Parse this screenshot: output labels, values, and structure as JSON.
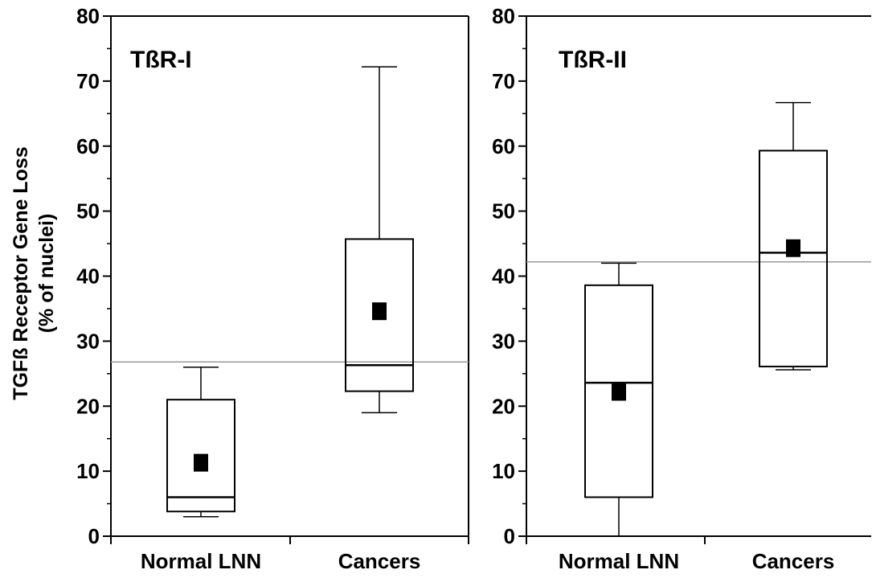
{
  "chart_data": {
    "type": "box",
    "ylabel_line1": "TGFß Receptor Gene Loss",
    "ylabel_line2": "(% of nuclei)",
    "ylim": [
      0,
      80
    ],
    "yticks": [
      "0",
      "10",
      "20",
      "30",
      "40",
      "50",
      "60",
      "70",
      "80"
    ],
    "panels": [
      {
        "title": "TßR-I",
        "categories": [
          "Normal LNN",
          "Cancers"
        ],
        "threshold": 26.8,
        "boxes": [
          {
            "category": "Normal LNN",
            "whisker_low": 3.0,
            "q1": 3.8,
            "median": 6.0,
            "q3": 21.0,
            "whisker_high": 26.0,
            "mean": 11.3
          },
          {
            "category": "Cancers",
            "whisker_low": 19.0,
            "q1": 22.3,
            "median": 26.3,
            "q3": 45.7,
            "whisker_high": 72.2,
            "mean": 34.6
          }
        ]
      },
      {
        "title": "TßR-II",
        "categories": [
          "Normal LNN",
          "Cancers"
        ],
        "threshold": 42.2,
        "boxes": [
          {
            "category": "Normal LNN",
            "whisker_low": 0.0,
            "q1": 6.0,
            "median": 23.6,
            "q3": 38.6,
            "whisker_high": 42.0,
            "mean": 22.2
          },
          {
            "category": "Cancers",
            "whisker_low": 25.6,
            "q1": 26.1,
            "median": 43.6,
            "q3": 59.3,
            "whisker_high": 66.7,
            "mean": 44.3
          }
        ]
      }
    ],
    "colors": {
      "box_stroke": "#000000",
      "mean_marker": "#000000",
      "threshold_line": "#9a9a9a"
    }
  }
}
